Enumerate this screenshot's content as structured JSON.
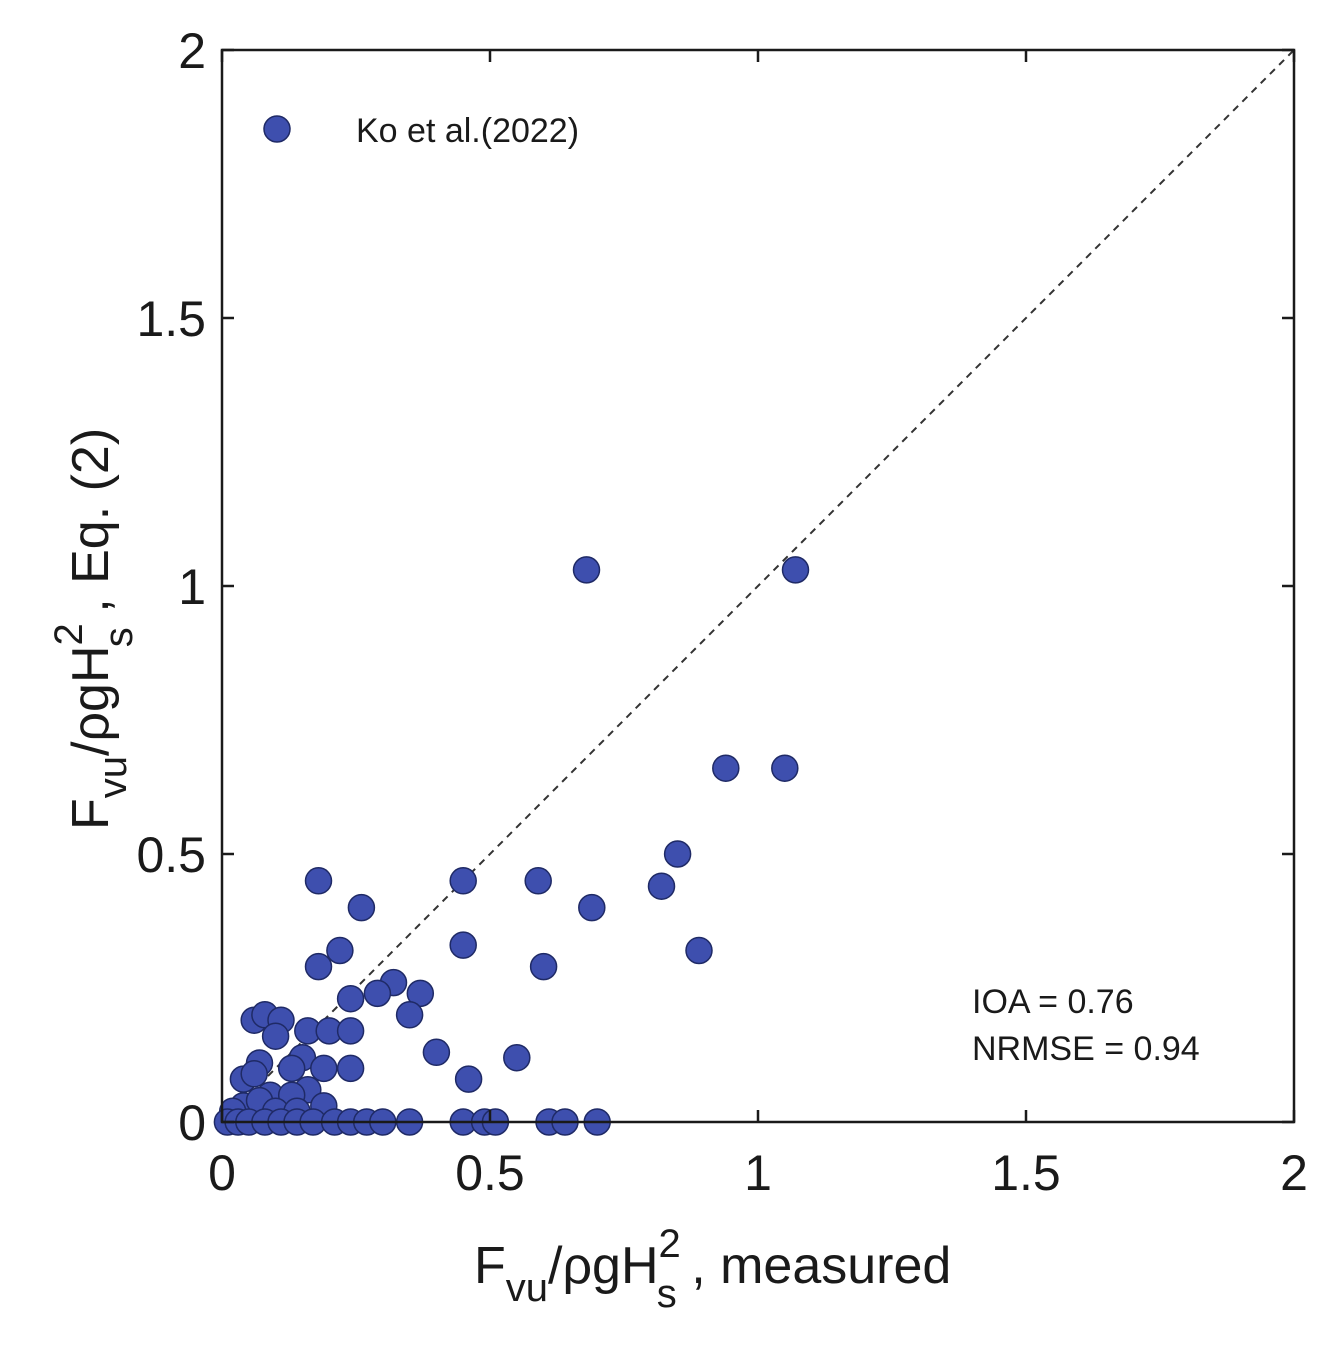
{
  "chart_data": {
    "type": "scatter",
    "xlabel": {
      "base": "F",
      "sub1": "vu",
      "mid": "/ρgH",
      "sup": "2",
      "sub2": "s",
      "tail": " , measured"
    },
    "ylabel": {
      "base": "F",
      "sub1": "vu",
      "mid": "/ρgH",
      "sup": "2",
      "sub2": "s",
      "tail": " , Eq. (2)"
    },
    "xlim": [
      0,
      2
    ],
    "ylim": [
      0,
      2
    ],
    "xticks": [
      0,
      0.5,
      1,
      1.5,
      2
    ],
    "yticks": [
      0,
      0.5,
      1,
      1.5,
      2
    ],
    "xtick_labels": [
      "0",
      "0.5",
      "1",
      "1.5",
      "2"
    ],
    "ytick_labels": [
      "0",
      "0.5",
      "1",
      "1.5",
      "2"
    ],
    "grid": false,
    "legend_position": "top-left",
    "reference_line": {
      "style": "dashed",
      "from": [
        0,
        0
      ],
      "to": [
        2,
        2
      ]
    },
    "stats": [
      "IOA = 0.76",
      "NRMSE = 0.94"
    ],
    "colors": {
      "marker_fill": "#3e4fae",
      "marker_edge": "#1f2a66",
      "axis": "#1a1a1a"
    },
    "series": [
      {
        "name": "Ko et al.(2022)",
        "points": [
          [
            0.68,
            1.03
          ],
          [
            1.07,
            1.03
          ],
          [
            0.94,
            0.66
          ],
          [
            1.05,
            0.66
          ],
          [
            0.85,
            0.5
          ],
          [
            0.82,
            0.44
          ],
          [
            0.18,
            0.45
          ],
          [
            0.45,
            0.45
          ],
          [
            0.59,
            0.45
          ],
          [
            0.26,
            0.4
          ],
          [
            0.69,
            0.4
          ],
          [
            0.45,
            0.33
          ],
          [
            0.89,
            0.32
          ],
          [
            0.22,
            0.32
          ],
          [
            0.18,
            0.29
          ],
          [
            0.6,
            0.29
          ],
          [
            0.32,
            0.26
          ],
          [
            0.29,
            0.24
          ],
          [
            0.37,
            0.24
          ],
          [
            0.24,
            0.23
          ],
          [
            0.35,
            0.2
          ],
          [
            0.06,
            0.19
          ],
          [
            0.08,
            0.2
          ],
          [
            0.11,
            0.19
          ],
          [
            0.16,
            0.17
          ],
          [
            0.2,
            0.17
          ],
          [
            0.24,
            0.17
          ],
          [
            0.1,
            0.16
          ],
          [
            0.15,
            0.12
          ],
          [
            0.13,
            0.1
          ],
          [
            0.4,
            0.13
          ],
          [
            0.55,
            0.12
          ],
          [
            0.07,
            0.11
          ],
          [
            0.19,
            0.1
          ],
          [
            0.24,
            0.1
          ],
          [
            0.46,
            0.08
          ],
          [
            0.04,
            0.08
          ],
          [
            0.06,
            0.09
          ],
          [
            0.16,
            0.06
          ],
          [
            0.09,
            0.05
          ],
          [
            0.13,
            0.05
          ],
          [
            0.19,
            0.03
          ],
          [
            0.04,
            0.03
          ],
          [
            0.07,
            0.04
          ],
          [
            0.1,
            0.02
          ],
          [
            0.14,
            0.02
          ],
          [
            0.02,
            0.02
          ],
          [
            0.01,
            0.0
          ],
          [
            0.03,
            0.0
          ],
          [
            0.05,
            0.0
          ],
          [
            0.08,
            0.0
          ],
          [
            0.11,
            0.0
          ],
          [
            0.14,
            0.0
          ],
          [
            0.17,
            0.0
          ],
          [
            0.21,
            0.0
          ],
          [
            0.24,
            0.0
          ],
          [
            0.27,
            0.0
          ],
          [
            0.3,
            0.0
          ],
          [
            0.35,
            0.0
          ],
          [
            0.45,
            0.0
          ],
          [
            0.49,
            0.0
          ],
          [
            0.51,
            0.0
          ],
          [
            0.61,
            0.0
          ],
          [
            0.64,
            0.0
          ],
          [
            0.7,
            0.0
          ]
        ]
      }
    ]
  }
}
